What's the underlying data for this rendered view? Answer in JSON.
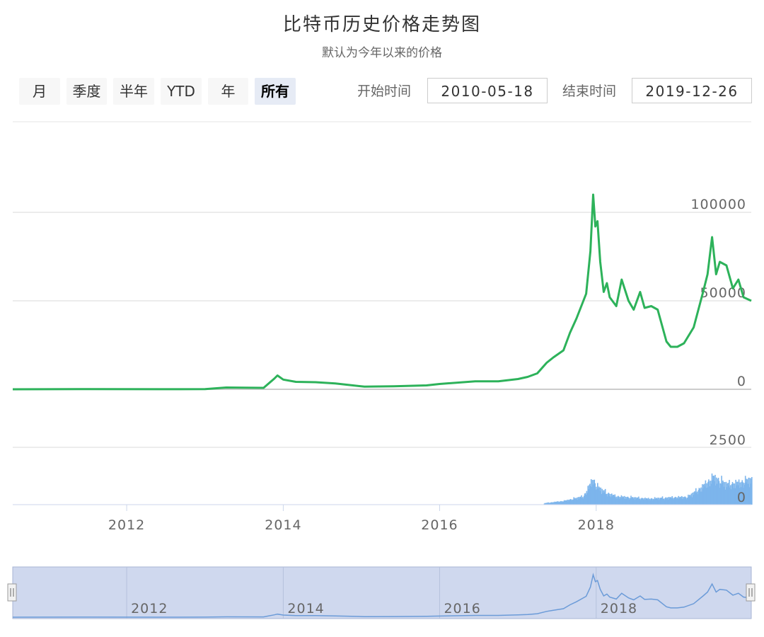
{
  "header": {
    "title": "比特币历史价格走势图",
    "subtitle": "默认为今年以来的价格"
  },
  "range_selector": {
    "buttons": [
      "月",
      "季度",
      "半年",
      "YTD",
      "年",
      "所有"
    ],
    "active": "所有",
    "start_label": "开始时间",
    "start_value": "2010-05-18",
    "end_label": "结束时间",
    "end_value": "2019-12-26"
  },
  "colors": {
    "price_line": "#2db25a",
    "volume_bars": "#7cb5ec",
    "navigator_fill": "#cfd8ee",
    "navigator_line": "#6b9bd8",
    "grid": "#e6e6e6"
  },
  "chart_data": [
    {
      "type": "line",
      "name": "price",
      "x_type": "date",
      "ylim": [
        0,
        110000
      ],
      "yticks": [
        0,
        50000,
        100000
      ],
      "grid": true,
      "x": [
        "2010-07-18",
        "2011-06-01",
        "2012-06-01",
        "2013-01-01",
        "2013-04-10",
        "2013-10-01",
        "2013-11-20",
        "2013-12-05",
        "2014-01-01",
        "2014-03-01",
        "2014-06-01",
        "2014-09-01",
        "2015-01-15",
        "2015-06-01",
        "2015-11-01",
        "2016-01-01",
        "2016-06-15",
        "2016-10-01",
        "2017-01-01",
        "2017-02-15",
        "2017-04-01",
        "2017-05-15",
        "2017-06-15",
        "2017-08-01",
        "2017-09-01",
        "2017-10-01",
        "2017-11-15",
        "2017-12-05",
        "2017-12-18",
        "2017-12-28",
        "2018-01-07",
        "2018-01-20",
        "2018-02-05",
        "2018-02-20",
        "2018-03-05",
        "2018-04-05",
        "2018-04-30",
        "2018-06-01",
        "2018-06-25",
        "2018-07-25",
        "2018-08-15",
        "2018-09-15",
        "2018-10-15",
        "2018-11-25",
        "2018-12-15",
        "2019-01-15",
        "2019-02-15",
        "2019-04-01",
        "2019-05-15",
        "2019-06-05",
        "2019-06-26",
        "2019-07-15",
        "2019-08-01",
        "2019-09-01",
        "2019-10-01",
        "2019-10-27",
        "2019-11-20",
        "2019-12-26"
      ],
      "y": [
        0,
        130,
        50,
        100,
        1000,
        800,
        6000,
        7800,
        5500,
        4200,
        4000,
        3300,
        1500,
        1700,
        2200,
        3000,
        4500,
        4500,
        5800,
        7000,
        9000,
        15000,
        18000,
        22000,
        32000,
        40000,
        54000,
        78000,
        110000,
        92000,
        95000,
        72000,
        55000,
        60000,
        52000,
        47000,
        62000,
        50000,
        45000,
        55000,
        46000,
        47000,
        45000,
        27000,
        24000,
        24000,
        26000,
        35000,
        55000,
        65000,
        86000,
        65000,
        72000,
        70000,
        57000,
        62000,
        52000,
        50000
      ],
      "xticks": [
        "2012",
        "2014",
        "2016",
        "2018"
      ]
    },
    {
      "type": "bar",
      "name": "volume",
      "ylim": [
        0,
        2500
      ],
      "yticks": [
        0,
        2500
      ],
      "x": [
        "2017-05-01",
        "2017-08-01",
        "2017-11-01",
        "2017-12-15",
        "2018-01-01",
        "2018-02-15",
        "2018-04-01",
        "2018-06-01",
        "2018-09-01",
        "2018-12-01",
        "2019-03-01",
        "2019-05-01",
        "2019-07-01",
        "2019-09-01",
        "2019-11-01",
        "2019-12-26"
      ],
      "y": [
        80,
        200,
        450,
        1400,
        1000,
        650,
        450,
        400,
        320,
        380,
        420,
        900,
        1500,
        1100,
        1200,
        1400
      ]
    }
  ],
  "navigator": {
    "xticks": [
      "2012",
      "2014",
      "2016",
      "2018"
    ]
  }
}
